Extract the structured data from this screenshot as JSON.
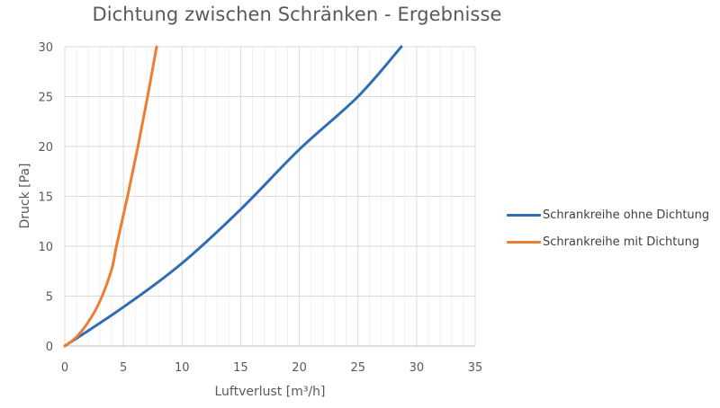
{
  "chart_data": {
    "type": "line",
    "title": "Dichtung zwischen Schränken - Ergebnisse",
    "xlabel": "Luftverlust [m³/h]",
    "ylabel": "Druck [Pa]",
    "xlim": [
      0,
      35
    ],
    "ylim": [
      0,
      30
    ],
    "xticks": [
      0,
      5,
      10,
      15,
      20,
      25,
      30,
      35
    ],
    "yticks": [
      0,
      5,
      10,
      15,
      20,
      25,
      30
    ],
    "grid": {
      "major": true,
      "minor_x": true,
      "minor_x_step": 1
    },
    "legend_position": "right",
    "series": [
      {
        "name": "Schrankreihe ohne Dichtung",
        "color": "#2E6DB4",
        "points": [
          [
            0,
            0
          ],
          [
            5,
            3.9
          ],
          [
            10,
            8.3
          ],
          [
            15,
            13.7
          ],
          [
            20,
            19.7
          ],
          [
            25,
            25.0
          ],
          [
            28.7,
            30
          ]
        ]
      },
      {
        "name": "Schrankreihe mit Dichtung",
        "color": "#ED7D31",
        "points": [
          [
            0,
            0
          ],
          [
            1,
            0.9
          ],
          [
            2,
            2.4
          ],
          [
            3,
            4.5
          ],
          [
            4,
            7.7
          ],
          [
            4.4,
            10
          ],
          [
            5.35,
            15
          ],
          [
            6.24,
            20
          ],
          [
            7.06,
            25
          ],
          [
            7.83,
            30
          ]
        ]
      }
    ]
  },
  "legend": {
    "items": [
      {
        "label": "Schrankreihe ohne Dichtung",
        "color": "#2E6DB4"
      },
      {
        "label": "Schrankreihe mit Dichtung",
        "color": "#ED7D31"
      }
    ]
  }
}
